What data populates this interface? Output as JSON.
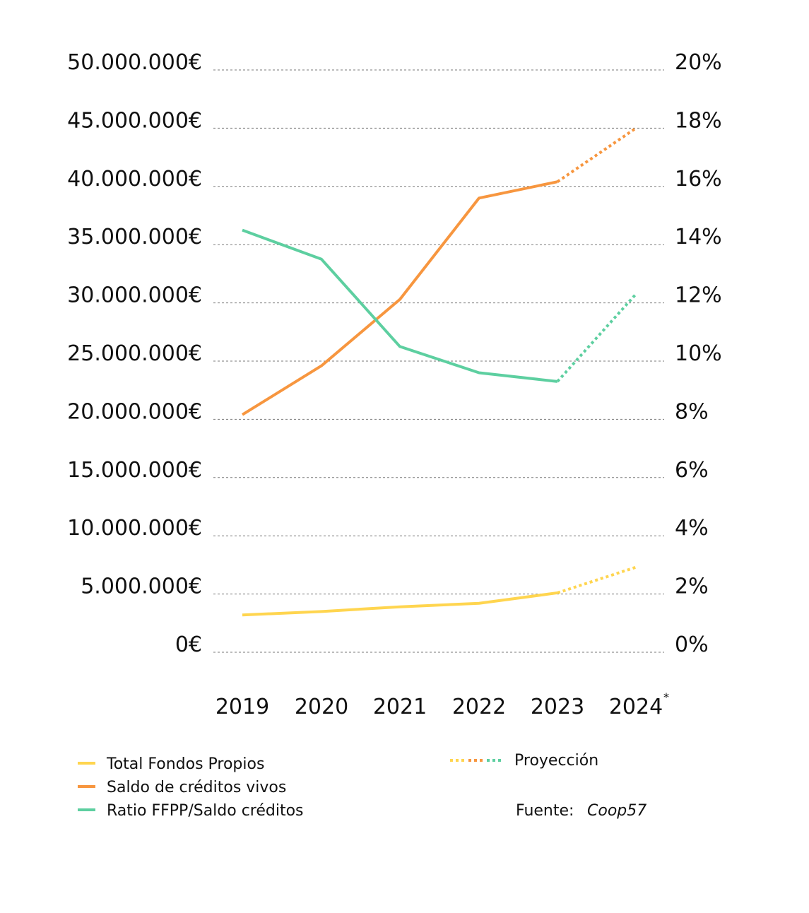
{
  "chart_data": {
    "type": "line",
    "categories": [
      "2019",
      "2020",
      "2021",
      "2022",
      "2023",
      "2024"
    ],
    "category_note": "*",
    "y_left": {
      "ticks": [
        "0€",
        "5.000.000€",
        "10.000.000€",
        "15.000.000€",
        "20.000.000€",
        "25.000.000€",
        "30.000.000€",
        "35.000.000€",
        "40.000.000€",
        "45.000.000€",
        "50.000.000€"
      ],
      "lim": [
        0,
        50000000
      ]
    },
    "y_right": {
      "ticks": [
        "0%",
        "2%",
        "4%",
        "6%",
        "8%",
        "10%",
        "12%",
        "14%",
        "16%",
        "18%",
        "20%"
      ],
      "lim": [
        0,
        20
      ]
    },
    "grid": true,
    "grid_style": "dashed",
    "series": [
      {
        "name": "Total Fondos Propios",
        "axis": "left",
        "color": "#FFD54F",
        "values": [
          3200000,
          3500000,
          3900000,
          4200000,
          5100000,
          7300000
        ],
        "projected_from_index": 4
      },
      {
        "name": "Saldo de créditos vivos",
        "axis": "left",
        "color": "#F7963F",
        "values": [
          20400000,
          24600000,
          30300000,
          39000000,
          40400000,
          45000000
        ],
        "projected_from_index": 4
      },
      {
        "name": "Ratio FFPP/Saldo créditos",
        "axis": "right",
        "color": "#5DCFA0",
        "values": [
          14.5,
          13.5,
          10.5,
          9.6,
          9.3,
          12.3
        ],
        "projected_from_index": 4
      }
    ],
    "projection_label": "Proyección",
    "source_label": "Fuente:",
    "source_name": "Coop57"
  }
}
